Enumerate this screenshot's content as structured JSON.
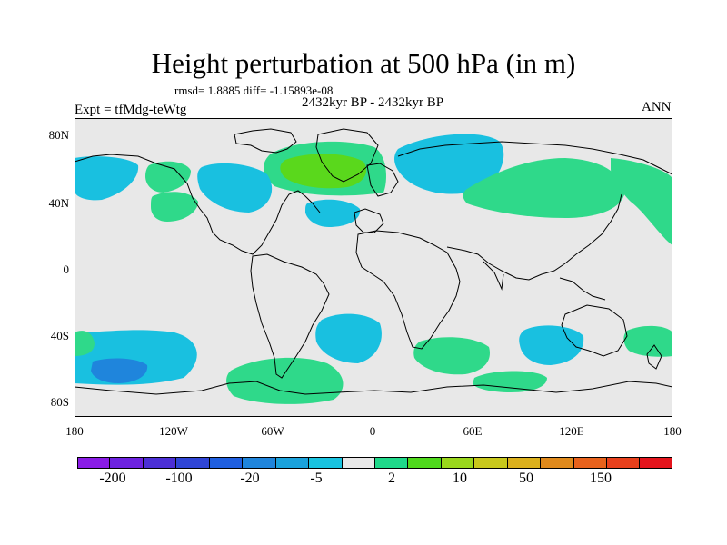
{
  "title": "Height perturbation at 500 hPa (in m)",
  "stats": "rmsd= 1.8885 diff= -1.15893e-08",
  "subtitle": "2432kyr BP - 2432kyr BP",
  "experiment": "Expt = tfMdg-teWtg",
  "season": "ANN",
  "lat_labels": [
    "80N",
    "40N",
    "0",
    "40S",
    "80S"
  ],
  "lon_labels": [
    "180",
    "120W",
    "60W",
    "0",
    "60E",
    "120E",
    "180"
  ],
  "colorbar": {
    "colors": [
      "#8a1ce6",
      "#6d22e0",
      "#4c2fd6",
      "#2f45d6",
      "#1f5fe0",
      "#1f85dc",
      "#1aa2dc",
      "#19c3e0",
      "#e8e8e8",
      "#1fd98a",
      "#4fd91c",
      "#9ad71c",
      "#c8c81c",
      "#dbb01c",
      "#e08a1c",
      "#e8621c",
      "#e8401c",
      "#e4141c"
    ],
    "labels": [
      "-200",
      "-100",
      "-20",
      "-5",
      "2",
      "10",
      "50",
      "150"
    ]
  },
  "background_color": "#e8e8e8",
  "regions": [
    {
      "name": "north-atlantic-green-anomaly",
      "color": "#2fd98a"
    },
    {
      "name": "greenland-core-green",
      "color": "#5ad81c"
    },
    {
      "name": "north-america-blue-anomaly",
      "color": "#19c0e0"
    },
    {
      "name": "scandinavia-blue-anomaly",
      "color": "#19c0e0"
    },
    {
      "name": "asia-green-anomaly",
      "color": "#2fd98a"
    },
    {
      "name": "antarctic-green-anomaly",
      "color": "#2fd98a"
    }
  ]
}
